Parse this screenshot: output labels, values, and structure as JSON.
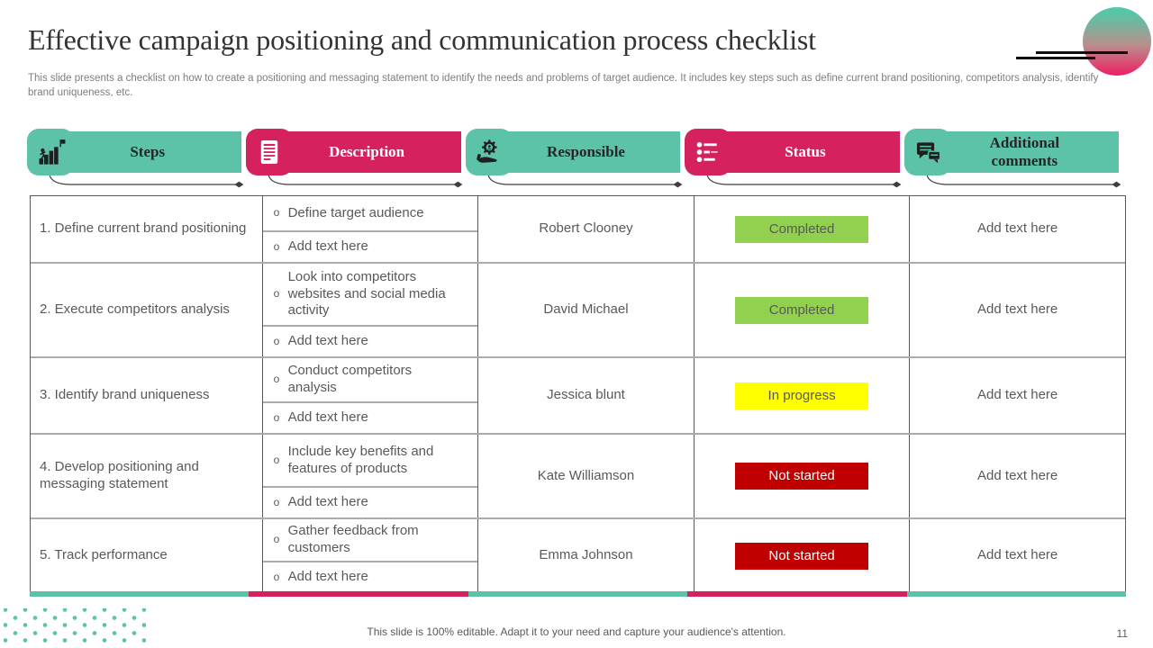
{
  "slide": {
    "title": "Effective campaign positioning and communication process checklist",
    "subtitle": "This slide presents a checklist on how to create a positioning and messaging statement to identify the needs and problems of target audience. It includes key steps such as define current brand positioning, competitors analysis, identify brand uniqueness, etc.",
    "footer_note": "This slide is 100% editable. Adapt it to your need and capture your audience's attention.",
    "page_number": "11"
  },
  "bullet_char": "o",
  "variant_colors": {
    "teal": {
      "bg": "#5CC3A8",
      "text": "#262626"
    },
    "pink": {
      "bg": "#D6215F",
      "text": "#FFFFFF"
    }
  },
  "status_colors": {
    "completed": {
      "bg": "#92D050",
      "text": "#595959"
    },
    "in_progress": {
      "bg": "#FFFF00",
      "text": "#595959"
    },
    "not_started": {
      "bg": "#C00000",
      "text": "#FFFFFF"
    }
  },
  "columns": [
    {
      "label": "Steps",
      "icon": "steps-climb-icon",
      "variant": "teal"
    },
    {
      "label": "Description",
      "icon": "document-icon",
      "variant": "pink"
    },
    {
      "label": "Responsible",
      "icon": "hand-gear-icon",
      "variant": "teal"
    },
    {
      "label": "Status",
      "icon": "checklist-icon",
      "variant": "pink"
    },
    {
      "label": "Additional comments",
      "icon": "comments-icon",
      "variant": "teal"
    }
  ],
  "rows": [
    {
      "step": "1. Define current brand positioning",
      "description": [
        "Define target audience",
        "Add text here"
      ],
      "responsible": "Robert Clooney",
      "status": {
        "label": "Completed",
        "type": "completed"
      },
      "comments": "Add text here"
    },
    {
      "step": "2. Execute competitors analysis",
      "description": [
        "Look into competitors websites and social media activity",
        "Add text here"
      ],
      "responsible": "David Michael",
      "status": {
        "label": "Completed",
        "type": "completed"
      },
      "comments": "Add text here"
    },
    {
      "step": "3. Identify brand uniqueness",
      "description": [
        "Conduct competitors analysis",
        "Add text here"
      ],
      "responsible": "Jessica blunt",
      "status": {
        "label": "In progress",
        "type": "in_progress"
      },
      "comments": "Add text here"
    },
    {
      "step": "4. Develop positioning and messaging statement",
      "description": [
        "Include key benefits and features of products",
        "Add text here"
      ],
      "responsible": "Kate Williamson",
      "status": {
        "label": "Not started",
        "type": "not_started"
      },
      "comments": "Add text here"
    },
    {
      "step": "5. Track performance",
      "description": [
        "Gather feedback from customers",
        "Add text here"
      ],
      "responsible": "Emma Johnson",
      "status": {
        "label": "Not started",
        "type": "not_started"
      },
      "comments": "Add text here"
    }
  ]
}
